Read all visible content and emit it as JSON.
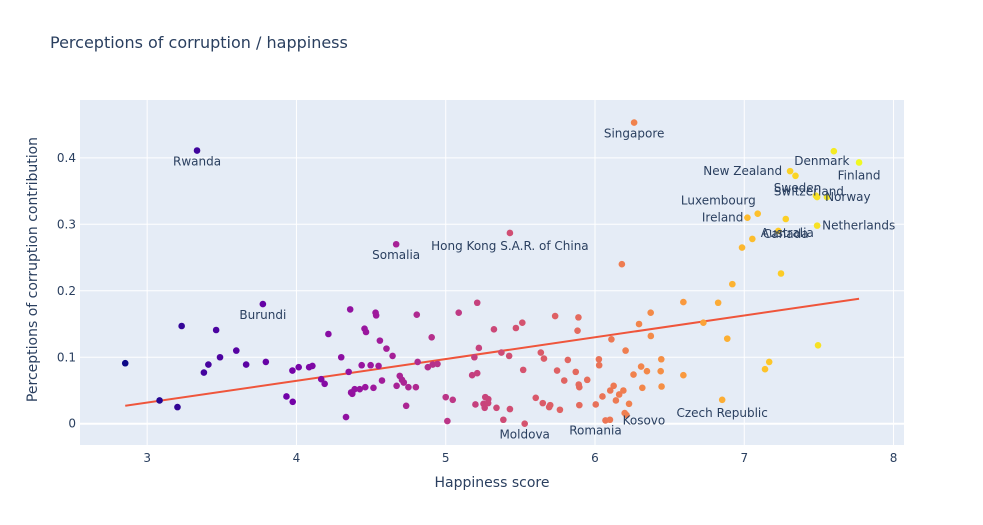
{
  "chart_data": {
    "type": "scatter",
    "title": "Perceptions of corruption / happiness",
    "xlabel": "Happiness score",
    "ylabel": "Perceptions of corruption contribution",
    "xlim": [
      2.55,
      8.07
    ],
    "ylim": [
      -0.032,
      0.487
    ],
    "x_ticks": [
      {
        "value": 3,
        "label": "3"
      },
      {
        "value": 4,
        "label": "4"
      },
      {
        "value": 5,
        "label": "5"
      },
      {
        "value": 6,
        "label": "6"
      },
      {
        "value": 7,
        "label": "7"
      },
      {
        "value": 8,
        "label": "8"
      }
    ],
    "y_ticks": [
      {
        "value": 0,
        "label": "0"
      },
      {
        "value": 0.1,
        "label": "0.1"
      },
      {
        "value": 0.2,
        "label": "0.2"
      },
      {
        "value": 0.3,
        "label": "0.3"
      },
      {
        "value": 0.4,
        "label": "0.4"
      }
    ],
    "grid": true,
    "legend": false,
    "color_scale": "plasma (by happiness score)",
    "colors": {
      "background": "#e5ecf6",
      "grid": "#ffffff",
      "trendline": "#ef553b",
      "text": "#2a3f5f",
      "scale": [
        "#0d0887",
        "#46039f",
        "#7201a8",
        "#9c179e",
        "#bd3786",
        "#d8576b",
        "#ed7953",
        "#fb9f3a",
        "#fdca26",
        "#f0f921"
      ]
    },
    "trendline": {
      "x": [
        2.853,
        7.769
      ],
      "y": [
        0.027,
        0.188
      ]
    },
    "points": [
      {
        "x": 3.334,
        "y": 0.411,
        "label": "Rwanda"
      },
      {
        "x": 6.262,
        "y": 0.453,
        "label": "Singapore"
      },
      {
        "x": 7.6,
        "y": 0.41,
        "label": "Denmark"
      },
      {
        "x": 7.769,
        "y": 0.393,
        "label": "Finland"
      },
      {
        "x": 7.307,
        "y": 0.38,
        "label": "New Zealand"
      },
      {
        "x": 7.343,
        "y": 0.373,
        "label": "Sweden"
      },
      {
        "x": 7.488,
        "y": 0.341,
        "label": "Norway"
      },
      {
        "x": 7.09,
        "y": 0.316,
        "label": "Luxembourg"
      },
      {
        "x": 7.48,
        "y": 0.343,
        "label": "Switzerland"
      },
      {
        "x": 7.021,
        "y": 0.31,
        "label": "Ireland"
      },
      {
        "x": 7.278,
        "y": 0.308,
        "label": "Canada"
      },
      {
        "x": 7.488,
        "y": 0.298,
        "label": "Netherlands"
      },
      {
        "x": 7.228,
        "y": 0.29,
        "label": "Australia"
      },
      {
        "x": 5.43,
        "y": 0.287,
        "label": "Hong Kong S.A.R. of China"
      },
      {
        "x": 4.668,
        "y": 0.27,
        "label": "Somalia"
      },
      {
        "x": 3.775,
        "y": 0.18,
        "label": "Burundi"
      },
      {
        "x": 6.852,
        "y": 0.036,
        "label": "Czech Republic"
      },
      {
        "x": 5.529,
        "y": 0.0,
        "label": "Moldova"
      },
      {
        "x": 6.07,
        "y": 0.005,
        "label": "Romania"
      },
      {
        "x": 6.1,
        "y": 0.006,
        "label": "Kosovo"
      },
      {
        "x": 2.853,
        "y": 0.091,
        "label": ""
      },
      {
        "x": 3.083,
        "y": 0.035,
        "label": ""
      },
      {
        "x": 3.203,
        "y": 0.025,
        "label": ""
      },
      {
        "x": 3.231,
        "y": 0.147,
        "label": ""
      },
      {
        "x": 3.38,
        "y": 0.077,
        "label": ""
      },
      {
        "x": 3.41,
        "y": 0.089,
        "label": ""
      },
      {
        "x": 3.462,
        "y": 0.141,
        "label": ""
      },
      {
        "x": 3.488,
        "y": 0.1,
        "label": ""
      },
      {
        "x": 3.597,
        "y": 0.11,
        "label": ""
      },
      {
        "x": 3.663,
        "y": 0.089,
        "label": ""
      },
      {
        "x": 3.795,
        "y": 0.093,
        "label": ""
      },
      {
        "x": 3.933,
        "y": 0.041,
        "label": ""
      },
      {
        "x": 3.973,
        "y": 0.08,
        "label": ""
      },
      {
        "x": 3.975,
        "y": 0.033,
        "label": ""
      },
      {
        "x": 4.015,
        "y": 0.085,
        "label": ""
      },
      {
        "x": 4.085,
        "y": 0.085,
        "label": ""
      },
      {
        "x": 4.107,
        "y": 0.087,
        "label": ""
      },
      {
        "x": 4.166,
        "y": 0.067,
        "label": ""
      },
      {
        "x": 4.189,
        "y": 0.06,
        "label": ""
      },
      {
        "x": 4.214,
        "y": 0.135,
        "label": ""
      },
      {
        "x": 4.3,
        "y": 0.1,
        "label": ""
      },
      {
        "x": 4.332,
        "y": 0.01,
        "label": ""
      },
      {
        "x": 4.35,
        "y": 0.078,
        "label": ""
      },
      {
        "x": 4.36,
        "y": 0.172,
        "label": ""
      },
      {
        "x": 4.366,
        "y": 0.047,
        "label": ""
      },
      {
        "x": 4.374,
        "y": 0.045,
        "label": ""
      },
      {
        "x": 4.39,
        "y": 0.052,
        "label": ""
      },
      {
        "x": 4.424,
        "y": 0.052,
        "label": ""
      },
      {
        "x": 4.437,
        "y": 0.088,
        "label": ""
      },
      {
        "x": 4.456,
        "y": 0.143,
        "label": ""
      },
      {
        "x": 4.466,
        "y": 0.138,
        "label": ""
      },
      {
        "x": 4.461,
        "y": 0.055,
        "label": ""
      },
      {
        "x": 4.497,
        "y": 0.088,
        "label": ""
      },
      {
        "x": 4.516,
        "y": 0.054,
        "label": ""
      },
      {
        "x": 4.53,
        "y": 0.167,
        "label": ""
      },
      {
        "x": 4.534,
        "y": 0.163,
        "label": ""
      },
      {
        "x": 4.55,
        "y": 0.087,
        "label": ""
      },
      {
        "x": 4.559,
        "y": 0.125,
        "label": ""
      },
      {
        "x": 4.573,
        "y": 0.065,
        "label": ""
      },
      {
        "x": 4.603,
        "y": 0.113,
        "label": ""
      },
      {
        "x": 4.644,
        "y": 0.102,
        "label": ""
      },
      {
        "x": 4.671,
        "y": 0.057,
        "label": ""
      },
      {
        "x": 4.692,
        "y": 0.072,
        "label": ""
      },
      {
        "x": 4.707,
        "y": 0.066,
        "label": ""
      },
      {
        "x": 4.719,
        "y": 0.062,
        "label": ""
      },
      {
        "x": 4.735,
        "y": 0.027,
        "label": ""
      },
      {
        "x": 4.75,
        "y": 0.055,
        "label": ""
      },
      {
        "x": 4.8,
        "y": 0.055,
        "label": ""
      },
      {
        "x": 4.812,
        "y": 0.093,
        "label": ""
      },
      {
        "x": 4.806,
        "y": 0.164,
        "label": ""
      },
      {
        "x": 4.88,
        "y": 0.085,
        "label": ""
      },
      {
        "x": 4.906,
        "y": 0.13,
        "label": ""
      },
      {
        "x": 4.913,
        "y": 0.089,
        "label": ""
      },
      {
        "x": 4.945,
        "y": 0.09,
        "label": ""
      },
      {
        "x": 5.0,
        "y": 0.04,
        "label": ""
      },
      {
        "x": 5.011,
        "y": 0.004,
        "label": ""
      },
      {
        "x": 5.047,
        "y": 0.036,
        "label": ""
      },
      {
        "x": 5.087,
        "y": 0.167,
        "label": ""
      },
      {
        "x": 5.177,
        "y": 0.073,
        "label": ""
      },
      {
        "x": 5.192,
        "y": 0.1,
        "label": ""
      },
      {
        "x": 5.199,
        "y": 0.029,
        "label": ""
      },
      {
        "x": 5.211,
        "y": 0.076,
        "label": ""
      },
      {
        "x": 5.211,
        "y": 0.182,
        "label": ""
      },
      {
        "x": 5.222,
        "y": 0.114,
        "label": ""
      },
      {
        "x": 5.253,
        "y": 0.03,
        "label": ""
      },
      {
        "x": 5.265,
        "y": 0.04,
        "label": ""
      },
      {
        "x": 5.261,
        "y": 0.024,
        "label": ""
      },
      {
        "x": 5.285,
        "y": 0.037,
        "label": ""
      },
      {
        "x": 5.284,
        "y": 0.031,
        "label": ""
      },
      {
        "x": 5.323,
        "y": 0.142,
        "label": ""
      },
      {
        "x": 5.34,
        "y": 0.024,
        "label": ""
      },
      {
        "x": 5.373,
        "y": 0.107,
        "label": ""
      },
      {
        "x": 5.386,
        "y": 0.006,
        "label": ""
      },
      {
        "x": 5.425,
        "y": 0.102,
        "label": ""
      },
      {
        "x": 5.43,
        "y": 0.022,
        "label": ""
      },
      {
        "x": 5.47,
        "y": 0.144,
        "label": ""
      },
      {
        "x": 5.513,
        "y": 0.152,
        "label": ""
      },
      {
        "x": 5.519,
        "y": 0.081,
        "label": ""
      },
      {
        "x": 5.603,
        "y": 0.039,
        "label": ""
      },
      {
        "x": 5.637,
        "y": 0.107,
        "label": ""
      },
      {
        "x": 5.65,
        "y": 0.031,
        "label": ""
      },
      {
        "x": 5.658,
        "y": 0.098,
        "label": ""
      },
      {
        "x": 5.693,
        "y": 0.025,
        "label": ""
      },
      {
        "x": 5.7,
        "y": 0.028,
        "label": ""
      },
      {
        "x": 5.733,
        "y": 0.162,
        "label": ""
      },
      {
        "x": 5.746,
        "y": 0.08,
        "label": ""
      },
      {
        "x": 5.765,
        "y": 0.021,
        "label": ""
      },
      {
        "x": 5.794,
        "y": 0.065,
        "label": ""
      },
      {
        "x": 5.818,
        "y": 0.096,
        "label": ""
      },
      {
        "x": 5.871,
        "y": 0.078,
        "label": ""
      },
      {
        "x": 5.883,
        "y": 0.14,
        "label": ""
      },
      {
        "x": 5.889,
        "y": 0.16,
        "label": ""
      },
      {
        "x": 5.891,
        "y": 0.059,
        "label": ""
      },
      {
        "x": 5.895,
        "y": 0.055,
        "label": ""
      },
      {
        "x": 5.895,
        "y": 0.028,
        "label": ""
      },
      {
        "x": 5.948,
        "y": 0.066,
        "label": ""
      },
      {
        "x": 6.005,
        "y": 0.029,
        "label": ""
      },
      {
        "x": 6.026,
        "y": 0.097,
        "label": ""
      },
      {
        "x": 6.028,
        "y": 0.088,
        "label": ""
      },
      {
        "x": 6.05,
        "y": 0.041,
        "label": ""
      },
      {
        "x": 6.102,
        "y": 0.05,
        "label": ""
      },
      {
        "x": 6.11,
        "y": 0.127,
        "label": ""
      },
      {
        "x": 6.125,
        "y": 0.057,
        "label": ""
      },
      {
        "x": 6.14,
        "y": 0.035,
        "label": ""
      },
      {
        "x": 6.162,
        "y": 0.044,
        "label": ""
      },
      {
        "x": 6.18,
        "y": 0.24,
        "label": ""
      },
      {
        "x": 6.19,
        "y": 0.05,
        "label": ""
      },
      {
        "x": 6.199,
        "y": 0.016,
        "label": ""
      },
      {
        "x": 6.205,
        "y": 0.11,
        "label": ""
      },
      {
        "x": 6.211,
        "y": 0.013,
        "label": ""
      },
      {
        "x": 6.228,
        "y": 0.03,
        "label": ""
      },
      {
        "x": 6.258,
        "y": 0.074,
        "label": ""
      },
      {
        "x": 6.295,
        "y": 0.15,
        "label": ""
      },
      {
        "x": 6.309,
        "y": 0.086,
        "label": ""
      },
      {
        "x": 6.317,
        "y": 0.054,
        "label": ""
      },
      {
        "x": 6.348,
        "y": 0.079,
        "label": ""
      },
      {
        "x": 6.373,
        "y": 0.167,
        "label": ""
      },
      {
        "x": 6.374,
        "y": 0.132,
        "label": ""
      },
      {
        "x": 6.44,
        "y": 0.079,
        "label": ""
      },
      {
        "x": 6.444,
        "y": 0.097,
        "label": ""
      },
      {
        "x": 6.446,
        "y": 0.056,
        "label": ""
      },
      {
        "x": 6.592,
        "y": 0.073,
        "label": ""
      },
      {
        "x": 6.592,
        "y": 0.183,
        "label": ""
      },
      {
        "x": 6.726,
        "y": 0.152,
        "label": ""
      },
      {
        "x": 6.825,
        "y": 0.182,
        "label": ""
      },
      {
        "x": 6.886,
        "y": 0.128,
        "label": ""
      },
      {
        "x": 6.92,
        "y": 0.21,
        "label": ""
      },
      {
        "x": 6.985,
        "y": 0.265,
        "label": ""
      },
      {
        "x": 7.054,
        "y": 0.278,
        "label": ""
      },
      {
        "x": 7.139,
        "y": 0.082,
        "label": ""
      },
      {
        "x": 7.167,
        "y": 0.093,
        "label": ""
      },
      {
        "x": 7.246,
        "y": 0.226,
        "label": ""
      },
      {
        "x": 7.494,
        "y": 0.118,
        "label": ""
      },
      {
        "x": 7.554,
        "y": 0.341,
        "label": ""
      }
    ]
  }
}
